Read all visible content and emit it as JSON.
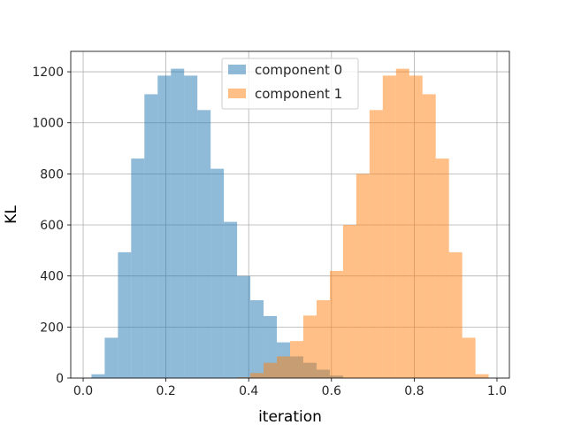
{
  "chart_data": {
    "type": "histogram",
    "xlabel": "iteration",
    "ylabel": "KL",
    "xlim": [
      -0.03,
      1.03
    ],
    "ylim": [
      0,
      1280
    ],
    "xticks": [
      0.0,
      0.2,
      0.4,
      0.6,
      0.8,
      1.0
    ],
    "yticks": [
      0,
      200,
      400,
      600,
      800,
      1000,
      1200
    ],
    "xtick_labels": [
      "0.0",
      "0.2",
      "0.4",
      "0.6",
      "0.8",
      "1.0"
    ],
    "ytick_labels": [
      "0",
      "200",
      "400",
      "600",
      "800",
      "1000",
      "1200"
    ],
    "grid": true,
    "legend_position": "upper center",
    "bar_alpha": 0.5,
    "series": [
      {
        "name": "component 0",
        "color": "#1f77b4",
        "bin_edges": [
          0.02,
          0.052,
          0.084,
          0.116,
          0.148,
          0.18,
          0.212,
          0.244,
          0.276,
          0.308,
          0.34,
          0.372,
          0.404,
          0.436,
          0.468,
          0.5,
          0.532,
          0.564,
          0.596,
          0.628
        ],
        "counts": [
          15,
          158,
          493,
          860,
          1112,
          1185,
          1212,
          1185,
          1050,
          820,
          612,
          400,
          305,
          243,
          140,
          85,
          60,
          33,
          10
        ]
      },
      {
        "name": "component 1",
        "color": "#ff7f0e",
        "bin_edges": [
          0.372,
          0.404,
          0.436,
          0.468,
          0.5,
          0.532,
          0.564,
          0.596,
          0.628,
          0.66,
          0.692,
          0.724,
          0.756,
          0.788,
          0.82,
          0.852,
          0.884,
          0.916,
          0.948,
          0.98
        ],
        "counts": [
          3,
          20,
          60,
          85,
          145,
          245,
          305,
          420,
          600,
          800,
          1050,
          1185,
          1212,
          1185,
          1112,
          860,
          493,
          158,
          15
        ]
      }
    ]
  }
}
